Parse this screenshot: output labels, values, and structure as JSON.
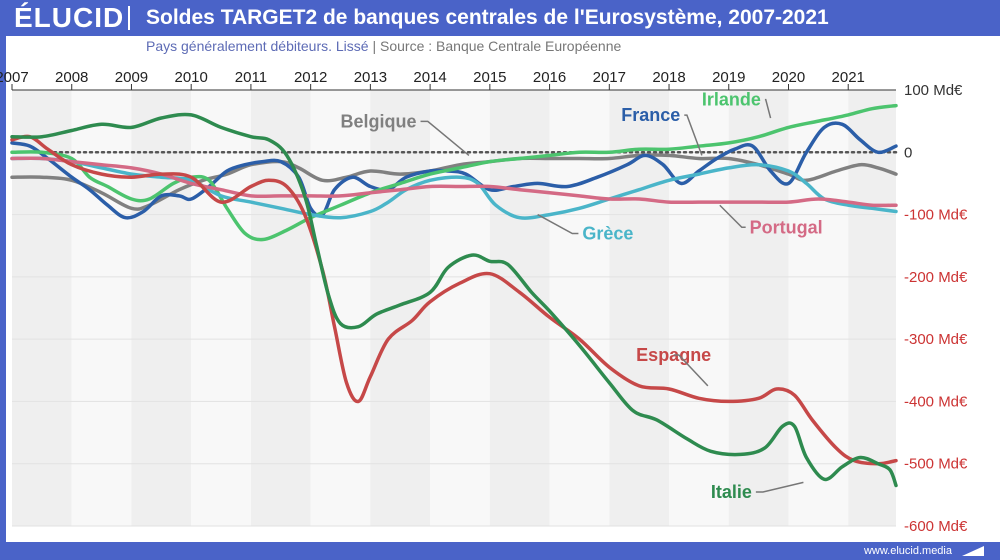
{
  "header": {
    "logo": "ÉLUCID",
    "title": "Soldes TARGET2 de banques centrales de l'Eurosystème, 2007-2021"
  },
  "subtitle": {
    "text": "Pays généralement débiteurs. Lissé",
    "separator": "|",
    "source": "Source : Banque Centrale Européenne"
  },
  "footer": {
    "url": "www.elucid.media"
  },
  "chart_data": {
    "type": "line",
    "x_ticks": [
      "2007",
      "2008",
      "2009",
      "2010",
      "2011",
      "2012",
      "2013",
      "2014",
      "2015",
      "2016",
      "2017",
      "2018",
      "2019",
      "2020",
      "2021"
    ],
    "xlim": [
      2007.0,
      2021.8
    ],
    "ylim": [
      -600,
      100
    ],
    "y_ticks": [
      {
        "value": 100,
        "label": "100 Md€"
      },
      {
        "value": 0,
        "label": "0"
      },
      {
        "value": -100,
        "label": "-100 Md€"
      },
      {
        "value": -200,
        "label": "-200 Md€"
      },
      {
        "value": -300,
        "label": "-300 Md€"
      },
      {
        "value": -400,
        "label": "-400 Md€"
      },
      {
        "value": -500,
        "label": "-500 Md€"
      },
      {
        "value": -600,
        "label": "-600 Md€"
      }
    ],
    "zero_line": "dotted",
    "alternating_year_bands": true,
    "colors": {
      "Belgique": "#808080",
      "France": "#2b5ea8",
      "Irlande": "#4cc46e",
      "Grèce": "#4ab5c9",
      "Portugal": "#d46a85",
      "Espagne": "#c64848",
      "Italie": "#2e8b4f",
      "label_negative": "#c33",
      "label_positive": "#333"
    },
    "series": [
      {
        "name": "Belgique",
        "points": [
          [
            2007.0,
            -40
          ],
          [
            2007.5,
            -40
          ],
          [
            2008.0,
            -45
          ],
          [
            2008.5,
            -65
          ],
          [
            2009.0,
            -90
          ],
          [
            2009.3,
            -85
          ],
          [
            2009.8,
            -60
          ],
          [
            2010.2,
            -45
          ],
          [
            2010.6,
            -35
          ],
          [
            2011.0,
            -20
          ],
          [
            2011.5,
            -15
          ],
          [
            2011.8,
            -25
          ],
          [
            2012.2,
            -45
          ],
          [
            2012.6,
            -40
          ],
          [
            2013.0,
            -30
          ],
          [
            2013.5,
            -35
          ],
          [
            2014.0,
            -30
          ],
          [
            2014.5,
            -20
          ],
          [
            2015.0,
            -15
          ],
          [
            2015.5,
            -10
          ],
          [
            2016.0,
            -10
          ],
          [
            2016.5,
            -10
          ],
          [
            2017.0,
            -10
          ],
          [
            2017.5,
            -5
          ],
          [
            2018.0,
            -5
          ],
          [
            2018.5,
            -10
          ],
          [
            2019.0,
            -10
          ],
          [
            2019.5,
            -20
          ],
          [
            2020.0,
            -35
          ],
          [
            2020.3,
            -45
          ],
          [
            2020.8,
            -30
          ],
          [
            2021.2,
            -20
          ],
          [
            2021.5,
            -25
          ],
          [
            2021.8,
            -35
          ]
        ]
      },
      {
        "name": "France",
        "points": [
          [
            2007.0,
            15
          ],
          [
            2007.3,
            10
          ],
          [
            2007.6,
            -10
          ],
          [
            2008.0,
            -40
          ],
          [
            2008.3,
            -60
          ],
          [
            2008.6,
            -85
          ],
          [
            2008.9,
            -105
          ],
          [
            2009.2,
            -95
          ],
          [
            2009.5,
            -70
          ],
          [
            2009.8,
            -70
          ],
          [
            2010.0,
            -75
          ],
          [
            2010.3,
            -55
          ],
          [
            2010.6,
            -30
          ],
          [
            2010.9,
            -20
          ],
          [
            2011.2,
            -15
          ],
          [
            2011.5,
            -15
          ],
          [
            2011.8,
            -40
          ],
          [
            2012.0,
            -90
          ],
          [
            2012.2,
            -100
          ],
          [
            2012.4,
            -60
          ],
          [
            2012.7,
            -40
          ],
          [
            2013.0,
            -55
          ],
          [
            2013.3,
            -60
          ],
          [
            2013.6,
            -40
          ],
          [
            2014.0,
            -30
          ],
          [
            2014.3,
            -30
          ],
          [
            2014.6,
            -35
          ],
          [
            2015.0,
            -60
          ],
          [
            2015.4,
            -55
          ],
          [
            2015.8,
            -50
          ],
          [
            2016.3,
            -55
          ],
          [
            2016.8,
            -40
          ],
          [
            2017.3,
            -20
          ],
          [
            2017.6,
            -5
          ],
          [
            2017.9,
            -20
          ],
          [
            2018.2,
            -50
          ],
          [
            2018.5,
            -30
          ],
          [
            2018.8,
            -10
          ],
          [
            2019.1,
            5
          ],
          [
            2019.4,
            10
          ],
          [
            2019.7,
            -30
          ],
          [
            2020.0,
            -50
          ],
          [
            2020.3,
            0
          ],
          [
            2020.6,
            40
          ],
          [
            2020.9,
            45
          ],
          [
            2021.2,
            20
          ],
          [
            2021.5,
            0
          ],
          [
            2021.8,
            10
          ]
        ]
      },
      {
        "name": "Irlande",
        "points": [
          [
            2007.0,
            0
          ],
          [
            2007.5,
            0
          ],
          [
            2008.0,
            -10
          ],
          [
            2008.3,
            -40
          ],
          [
            2008.6,
            -55
          ],
          [
            2009.0,
            -75
          ],
          [
            2009.3,
            -75
          ],
          [
            2009.7,
            -50
          ],
          [
            2010.0,
            -40
          ],
          [
            2010.3,
            -45
          ],
          [
            2010.6,
            -90
          ],
          [
            2010.9,
            -130
          ],
          [
            2011.2,
            -140
          ],
          [
            2011.6,
            -125
          ],
          [
            2012.0,
            -105
          ],
          [
            2012.5,
            -85
          ],
          [
            2013.0,
            -65
          ],
          [
            2013.5,
            -50
          ],
          [
            2014.0,
            -35
          ],
          [
            2014.5,
            -25
          ],
          [
            2015.0,
            -15
          ],
          [
            2015.5,
            -10
          ],
          [
            2016.0,
            -5
          ],
          [
            2016.5,
            0
          ],
          [
            2017.0,
            0
          ],
          [
            2017.5,
            5
          ],
          [
            2018.0,
            5
          ],
          [
            2018.5,
            10
          ],
          [
            2019.0,
            15
          ],
          [
            2019.5,
            25
          ],
          [
            2020.0,
            40
          ],
          [
            2020.5,
            50
          ],
          [
            2021.0,
            60
          ],
          [
            2021.4,
            70
          ],
          [
            2021.8,
            75
          ]
        ]
      },
      {
        "name": "Grèce",
        "points": [
          [
            2007.0,
            -10
          ],
          [
            2007.5,
            -10
          ],
          [
            2008.0,
            -15
          ],
          [
            2008.5,
            -25
          ],
          [
            2009.0,
            -35
          ],
          [
            2009.5,
            -40
          ],
          [
            2010.0,
            -45
          ],
          [
            2010.5,
            -70
          ],
          [
            2011.0,
            -80
          ],
          [
            2011.5,
            -90
          ],
          [
            2012.0,
            -100
          ],
          [
            2012.5,
            -105
          ],
          [
            2013.0,
            -95
          ],
          [
            2013.3,
            -80
          ],
          [
            2013.6,
            -60
          ],
          [
            2014.0,
            -45
          ],
          [
            2014.5,
            -40
          ],
          [
            2014.8,
            -50
          ],
          [
            2015.1,
            -85
          ],
          [
            2015.5,
            -105
          ],
          [
            2016.0,
            -100
          ],
          [
            2016.5,
            -90
          ],
          [
            2017.0,
            -75
          ],
          [
            2017.5,
            -60
          ],
          [
            2018.0,
            -45
          ],
          [
            2018.5,
            -35
          ],
          [
            2019.0,
            -25
          ],
          [
            2019.5,
            -20
          ],
          [
            2020.0,
            -30
          ],
          [
            2020.3,
            -50
          ],
          [
            2020.6,
            -75
          ],
          [
            2021.0,
            -85
          ],
          [
            2021.4,
            -90
          ],
          [
            2021.8,
            -95
          ]
        ]
      },
      {
        "name": "Portugal",
        "points": [
          [
            2007.0,
            -10
          ],
          [
            2007.5,
            -10
          ],
          [
            2008.0,
            -15
          ],
          [
            2008.5,
            -20
          ],
          [
            2009.0,
            -25
          ],
          [
            2009.5,
            -35
          ],
          [
            2010.0,
            -50
          ],
          [
            2010.5,
            -60
          ],
          [
            2011.0,
            -70
          ],
          [
            2011.5,
            -70
          ],
          [
            2012.0,
            -70
          ],
          [
            2012.5,
            -70
          ],
          [
            2013.0,
            -65
          ],
          [
            2013.5,
            -60
          ],
          [
            2014.0,
            -55
          ],
          [
            2014.5,
            -55
          ],
          [
            2015.0,
            -55
          ],
          [
            2015.5,
            -60
          ],
          [
            2016.0,
            -65
          ],
          [
            2016.5,
            -70
          ],
          [
            2017.0,
            -75
          ],
          [
            2017.5,
            -75
          ],
          [
            2018.0,
            -80
          ],
          [
            2018.5,
            -80
          ],
          [
            2019.0,
            -80
          ],
          [
            2019.5,
            -80
          ],
          [
            2020.0,
            -80
          ],
          [
            2020.5,
            -75
          ],
          [
            2021.0,
            -80
          ],
          [
            2021.4,
            -85
          ],
          [
            2021.8,
            -85
          ]
        ]
      },
      {
        "name": "Espagne",
        "points": [
          [
            2007.0,
            20
          ],
          [
            2007.3,
            25
          ],
          [
            2007.6,
            5
          ],
          [
            2008.0,
            -20
          ],
          [
            2008.5,
            -35
          ],
          [
            2009.0,
            -40
          ],
          [
            2009.5,
            -35
          ],
          [
            2010.0,
            -40
          ],
          [
            2010.5,
            -80
          ],
          [
            2011.0,
            -55
          ],
          [
            2011.3,
            -45
          ],
          [
            2011.6,
            -55
          ],
          [
            2011.9,
            -100
          ],
          [
            2012.2,
            -190
          ],
          [
            2012.4,
            -280
          ],
          [
            2012.6,
            -370
          ],
          [
            2012.8,
            -400
          ],
          [
            2013.0,
            -360
          ],
          [
            2013.3,
            -300
          ],
          [
            2013.7,
            -270
          ],
          [
            2014.0,
            -240
          ],
          [
            2014.5,
            -210
          ],
          [
            2015.0,
            -195
          ],
          [
            2015.5,
            -225
          ],
          [
            2016.0,
            -265
          ],
          [
            2016.5,
            -300
          ],
          [
            2017.0,
            -345
          ],
          [
            2017.5,
            -375
          ],
          [
            2018.0,
            -380
          ],
          [
            2018.5,
            -395
          ],
          [
            2019.0,
            -400
          ],
          [
            2019.5,
            -395
          ],
          [
            2019.8,
            -380
          ],
          [
            2020.1,
            -390
          ],
          [
            2020.4,
            -430
          ],
          [
            2020.8,
            -475
          ],
          [
            2021.1,
            -495
          ],
          [
            2021.5,
            -500
          ],
          [
            2021.8,
            -495
          ]
        ]
      },
      {
        "name": "Italie",
        "points": [
          [
            2007.0,
            25
          ],
          [
            2007.5,
            25
          ],
          [
            2008.0,
            35
          ],
          [
            2008.5,
            45
          ],
          [
            2009.0,
            40
          ],
          [
            2009.5,
            55
          ],
          [
            2010.0,
            60
          ],
          [
            2010.5,
            40
          ],
          [
            2011.0,
            25
          ],
          [
            2011.3,
            20
          ],
          [
            2011.6,
            -5
          ],
          [
            2011.9,
            -70
          ],
          [
            2012.1,
            -150
          ],
          [
            2012.3,
            -230
          ],
          [
            2012.5,
            -275
          ],
          [
            2012.8,
            -280
          ],
          [
            2013.1,
            -260
          ],
          [
            2013.5,
            -245
          ],
          [
            2014.0,
            -225
          ],
          [
            2014.3,
            -185
          ],
          [
            2014.7,
            -165
          ],
          [
            2015.0,
            -175
          ],
          [
            2015.3,
            -180
          ],
          [
            2015.7,
            -225
          ],
          [
            2016.0,
            -255
          ],
          [
            2016.5,
            -310
          ],
          [
            2017.0,
            -370
          ],
          [
            2017.4,
            -415
          ],
          [
            2017.8,
            -430
          ],
          [
            2018.3,
            -460
          ],
          [
            2018.7,
            -480
          ],
          [
            2019.2,
            -485
          ],
          [
            2019.6,
            -475
          ],
          [
            2019.9,
            -440
          ],
          [
            2020.1,
            -440
          ],
          [
            2020.3,
            -490
          ],
          [
            2020.6,
            -525
          ],
          [
            2020.9,
            -505
          ],
          [
            2021.2,
            -490
          ],
          [
            2021.5,
            -500
          ],
          [
            2021.7,
            -510
          ],
          [
            2021.8,
            -535
          ]
        ]
      }
    ],
    "labels": [
      {
        "series": "Belgique",
        "text": "Belgique",
        "x": 2012.5,
        "y": 40,
        "leader_to": [
          2014.65,
          -5
        ]
      },
      {
        "series": "France",
        "text": "France",
        "x": 2017.2,
        "y": 50,
        "leader_to": [
          2018.55,
          -5
        ]
      },
      {
        "series": "Irlande",
        "text": "Irlande",
        "x": 2018.55,
        "y": 75,
        "leader_to": [
          2019.7,
          55
        ]
      },
      {
        "series": "Grèce",
        "text": "Grèce",
        "x": 2016.55,
        "y": -140,
        "leader_to": [
          2015.8,
          -100
        ]
      },
      {
        "series": "Portugal",
        "text": "Portugal",
        "x": 2019.35,
        "y": -130,
        "leader_to": [
          2018.85,
          -85
        ]
      },
      {
        "series": "Espagne",
        "text": "Espagne",
        "x": 2017.45,
        "y": -335,
        "leader_to": [
          2018.65,
          -375
        ]
      },
      {
        "series": "Italie",
        "text": "Italie",
        "x": 2018.7,
        "y": -555,
        "leader_to": [
          2020.25,
          -530
        ]
      }
    ]
  }
}
